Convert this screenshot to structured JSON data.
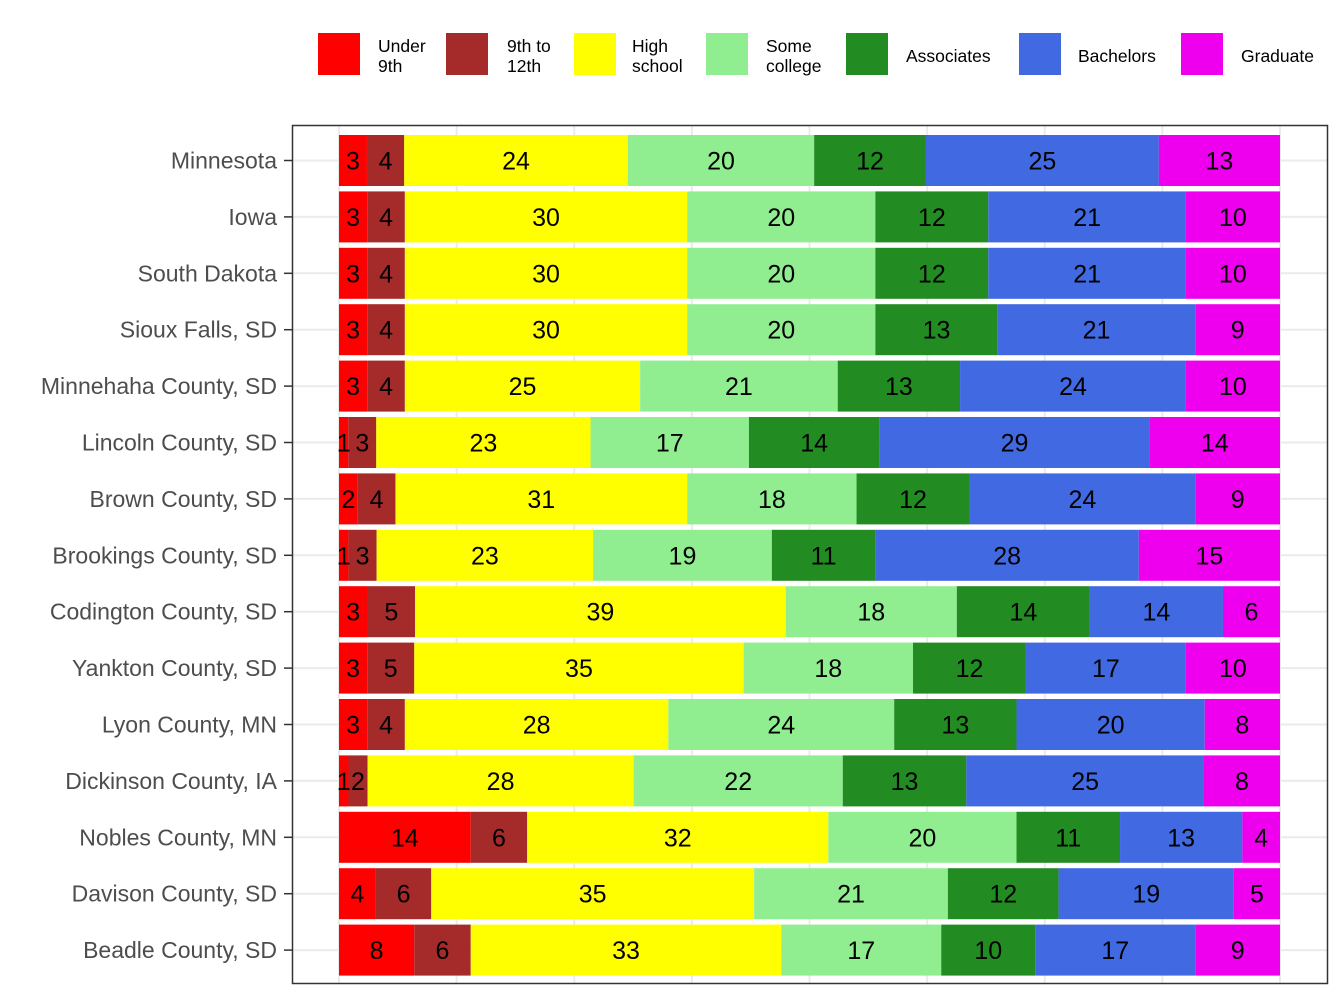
{
  "chart_data": {
    "type": "bar",
    "orientation": "horizontal",
    "stacked": true,
    "percent_stacked": true,
    "title": "",
    "xlabel": "",
    "ylabel": "",
    "xlim": [
      0,
      100
    ],
    "grid": true,
    "legend_position": "top",
    "categories": [
      "Minnesota",
      "Iowa",
      "South Dakota",
      "Sioux Falls, SD",
      "Minnehaha County, SD",
      "Lincoln County, SD",
      "Brown County, SD",
      "Brookings County, SD",
      "Codington County, SD",
      "Yankton County, SD",
      "Lyon County, MN",
      "Dickinson County, IA",
      "Nobles County, MN",
      "Davison County, SD",
      "Beadle County, SD"
    ],
    "series": [
      {
        "name": "Under\n9th",
        "color": "#ff0000",
        "values": [
          3,
          3,
          3,
          3,
          3,
          1,
          2,
          1,
          3,
          3,
          3,
          1,
          14,
          4,
          8
        ]
      },
      {
        "name": "9th to\n12th",
        "color": "#a52a2a",
        "values": [
          4,
          4,
          4,
          4,
          4,
          3,
          4,
          3,
          5,
          5,
          4,
          2,
          6,
          6,
          6
        ]
      },
      {
        "name": "High\nschool",
        "color": "#ffff00",
        "values": [
          24,
          30,
          30,
          30,
          25,
          23,
          31,
          23,
          39,
          35,
          28,
          28,
          32,
          35,
          33
        ]
      },
      {
        "name": "Some\ncollege",
        "color": "#90ee90",
        "values": [
          20,
          20,
          20,
          20,
          21,
          17,
          18,
          19,
          18,
          18,
          24,
          22,
          20,
          21,
          17
        ]
      },
      {
        "name": "Associates",
        "color": "#228b22",
        "values": [
          12,
          12,
          12,
          13,
          13,
          14,
          12,
          11,
          14,
          12,
          13,
          13,
          11,
          12,
          10
        ]
      },
      {
        "name": "Bachelors",
        "color": "#4169e1",
        "values": [
          25,
          21,
          21,
          21,
          24,
          29,
          24,
          28,
          14,
          17,
          20,
          25,
          13,
          19,
          17
        ]
      },
      {
        "name": "Graduate",
        "color": "#ee00ee",
        "values": [
          13,
          10,
          10,
          9,
          10,
          14,
          9,
          15,
          6,
          10,
          8,
          8,
          4,
          5,
          9
        ]
      }
    ]
  }
}
